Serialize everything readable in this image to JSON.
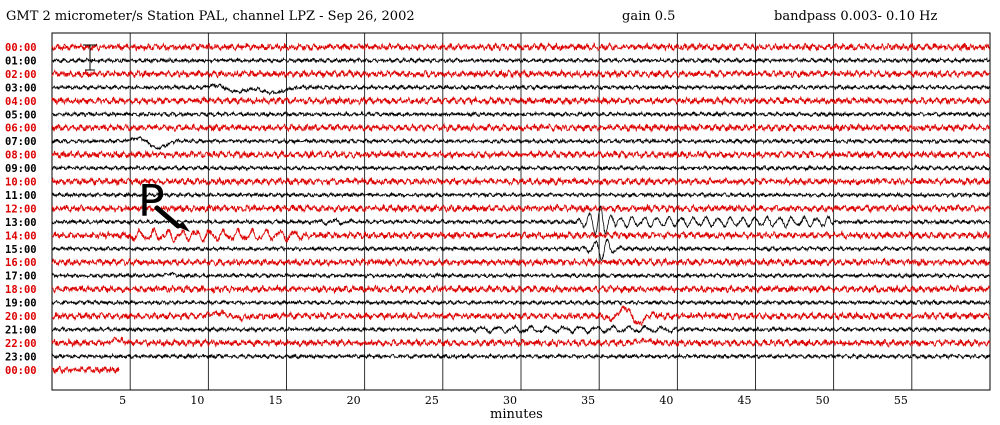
{
  "header": {
    "left": "GMT  2 micrometer/s  Station PAL, channel LPZ  -  Sep 26, 2002",
    "gain": "gain 0.5",
    "bandpass": "bandpass 0.003- 0.10 Hz"
  },
  "colors": {
    "red": "#dd0000",
    "black": "#000000",
    "grid": "#000000"
  },
  "chart_data": {
    "type": "line",
    "title": "GMT  2 micrometer/s  Station PAL, channel LPZ  -  Sep 26, 2002",
    "xlabel": "minutes",
    "ylabel": "",
    "xlim": [
      0,
      60
    ],
    "x_ticks": [
      "5",
      "10",
      "15",
      "20",
      "25",
      "30",
      "35",
      "40",
      "45",
      "50",
      "55"
    ],
    "hour_labels": [
      "00:00",
      "01:00",
      "02:00",
      "03:00",
      "04:00",
      "05:00",
      "06:00",
      "07:00",
      "08:00",
      "09:00",
      "10:00",
      "11:00",
      "12:00",
      "13:00",
      "14:00",
      "15:00",
      "16:00",
      "17:00",
      "18:00",
      "19:00",
      "20:00",
      "21:00",
      "22:00",
      "23:00",
      "00:00"
    ],
    "trace_colors": [
      "red",
      "black",
      "red",
      "black",
      "red",
      "black",
      "red",
      "black",
      "red",
      "black",
      "red",
      "black",
      "red",
      "black",
      "red",
      "black",
      "red",
      "black",
      "red",
      "black",
      "red",
      "black",
      "red",
      "black",
      "red"
    ],
    "annotation": "P",
    "last_trace_end_minute": 4.3,
    "grid": true
  }
}
